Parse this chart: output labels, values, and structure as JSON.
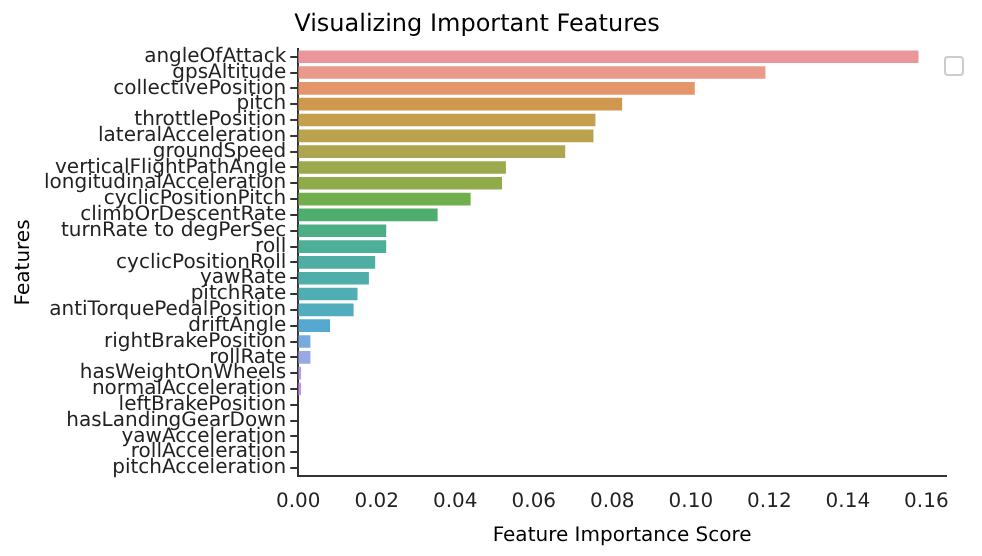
{
  "chart_data": {
    "type": "bar",
    "orientation": "horizontal",
    "title": "Visualizing Important Features",
    "xlabel": "Feature Importance Score",
    "ylabel": "Features",
    "categories": [
      "angleOfAttack",
      "gpsAltitude",
      "collectivePosition",
      "pitch",
      "throttlePosition",
      "lateralAcceleration",
      "groundSpeed",
      "verticalFlightPathAngle",
      "longitudinalAcceleration",
      "cyclicPositionPitch",
      "climbOrDescentRate",
      "turnRate to degPerSec",
      "roll",
      "cyclicPositionRoll",
      "yawRate",
      "pitchRate",
      "antiTorquePedalPosition",
      "driftAngle",
      "rightBrakePosition",
      "rollRate",
      "hasWeightOnWheels",
      "normalAcceleration",
      "leftBrakePosition",
      "hasLandingGearDown",
      "yawAcceleration",
      "rollAcceleration",
      "pitchAcceleration"
    ],
    "values": [
      0.158,
      0.119,
      0.101,
      0.0825,
      0.0757,
      0.0752,
      0.068,
      0.0529,
      0.0519,
      0.0439,
      0.0355,
      0.0224,
      0.0224,
      0.0196,
      0.018,
      0.0151,
      0.0141,
      0.0081,
      0.0031,
      0.0031,
      0.0007,
      0.0007,
      0,
      0,
      0,
      0,
      0
    ],
    "colors": [
      "#eb969b",
      "#e99a8a",
      "#e5956a",
      "#d0984f",
      "#c4a04f",
      "#bba24f",
      "#ada550",
      "#9ca94d",
      "#8fab4c",
      "#72af4c",
      "#4fae6e",
      "#4cae84",
      "#4daf98",
      "#4eaea4",
      "#4faeaa",
      "#50adb3",
      "#51acbd",
      "#55a9d1",
      "#77aadd",
      "#98a7e6",
      "#b29ee6",
      "#c693e3",
      "#d48fd7",
      "#e38fc9",
      "#e791bb",
      "#e994ad",
      "#ea95a4"
    ],
    "xlim": [
      0,
      0.165
    ],
    "xticks": [
      {
        "value": 0,
        "label": "0.00"
      },
      {
        "value": 0.02,
        "label": "0.02"
      },
      {
        "value": 0.04,
        "label": "0.04"
      },
      {
        "value": 0.06,
        "label": "0.06"
      },
      {
        "value": 0.08,
        "label": "0.08"
      },
      {
        "value": 0.1,
        "label": "0.10"
      },
      {
        "value": 0.12,
        "label": "0.12"
      },
      {
        "value": 0.14,
        "label": "0.14"
      },
      {
        "value": 0.16,
        "label": "0.16"
      }
    ],
    "grid": false
  }
}
